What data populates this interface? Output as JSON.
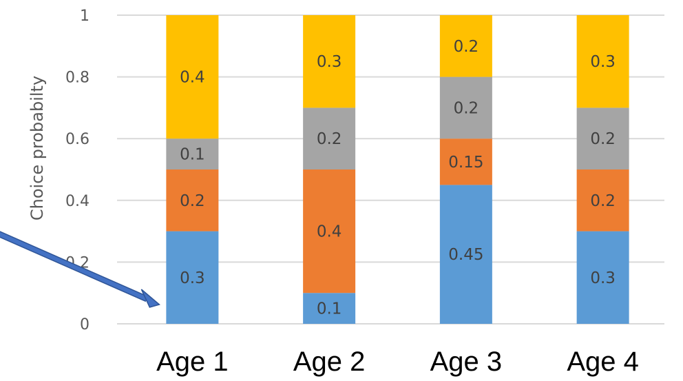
{
  "chart_data": {
    "type": "bar",
    "stacked": true,
    "categories": [
      "Age 1",
      "Age 2",
      "Age 3",
      "Age 4"
    ],
    "series": [
      {
        "values": [
          0.3,
          0.1,
          0.45,
          0.3
        ],
        "color": "#5b9bd5",
        "labels": [
          "0.3",
          "0.1",
          "0.45",
          "0.3"
        ]
      },
      {
        "values": [
          0.2,
          0.4,
          0.15,
          0.2
        ],
        "color": "#ed7d31",
        "labels": [
          "0.2",
          "0.4",
          "0.15",
          "0.2"
        ]
      },
      {
        "values": [
          0.1,
          0.2,
          0.2,
          0.2
        ],
        "color": "#a5a5a5",
        "labels": [
          "0.1",
          "0.2",
          "0.2",
          "0.2"
        ]
      },
      {
        "values": [
          0.4,
          0.3,
          0.2,
          0.3
        ],
        "color": "#ffc000",
        "labels": [
          "0.4",
          "0.3",
          "0.2",
          "0.3"
        ]
      }
    ],
    "title": "",
    "xlabel": "",
    "ylabel": "Choice probabilty",
    "ylim": [
      0,
      1
    ],
    "yticks": [
      0,
      0.2,
      0.4,
      0.6,
      0.8,
      1
    ],
    "ytick_labels": [
      "0",
      "0.2",
      "0.4",
      "0.6",
      "0.8",
      "1"
    ],
    "grid": true,
    "legend": "none",
    "annotation_arrow": {
      "color": "#4472c4",
      "target": "Age 1"
    }
  }
}
